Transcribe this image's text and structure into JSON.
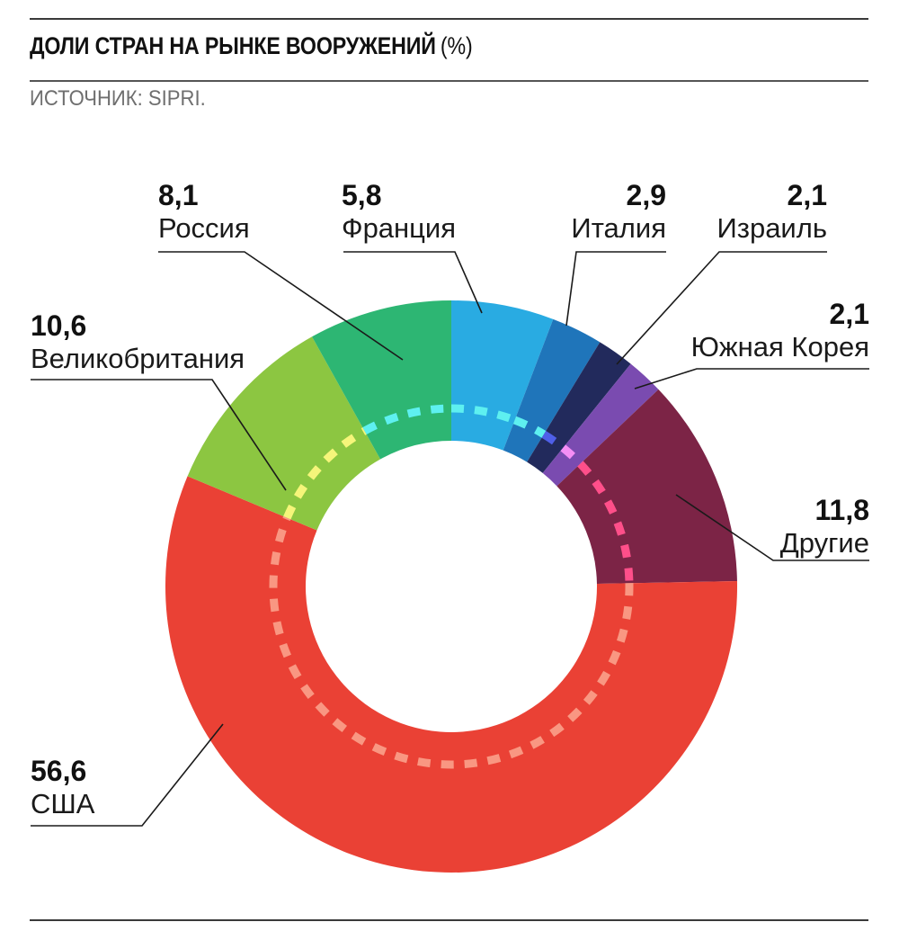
{
  "header": {
    "title": "ДОЛИ СТРАН НА РЫНКЕ ВООРУЖЕНИЙ",
    "unit": "(%)",
    "source": "ИСТОЧНИК: SIPRI."
  },
  "chart_data": {
    "type": "pie",
    "variant": "donut",
    "unit": "%",
    "slices": [
      {
        "name": "Франция",
        "value_label": "5,8",
        "value": 5.8,
        "color": "#29abe2",
        "dash_color": "#5ef0f0"
      },
      {
        "name": "Италия",
        "value_label": "2,9",
        "value": 2.9,
        "color": "#1f75ba",
        "dash_color": "#5ef0f0"
      },
      {
        "name": "Израиль",
        "value_label": "2,1",
        "value": 2.1,
        "color": "#222a5c",
        "dash_color": "#4f5fe8"
      },
      {
        "name": "Южная Корея",
        "value_label": "2,1",
        "value": 2.1,
        "color": "#7a4bb0",
        "dash_color": "#f58ef5"
      },
      {
        "name": "Другие",
        "value_label": "11,8",
        "value": 11.8,
        "color": "#7c2446",
        "dash_color": "#ff4f8a"
      },
      {
        "name": "США",
        "value_label": "56,6",
        "value": 56.6,
        "color": "#ea4135",
        "dash_color": "#f99782"
      },
      {
        "name": "Великобритания",
        "value_label": "10,6",
        "value": 10.6,
        "color": "#8cc641",
        "dash_color": "#f5f57a"
      },
      {
        "name": "Россия",
        "value_label": "8,1",
        "value": 8.1,
        "color": "#2db673",
        "dash_color": "#5ef0f0"
      }
    ],
    "start_direction": "top",
    "direction": "clockwise",
    "legend": "none"
  }
}
